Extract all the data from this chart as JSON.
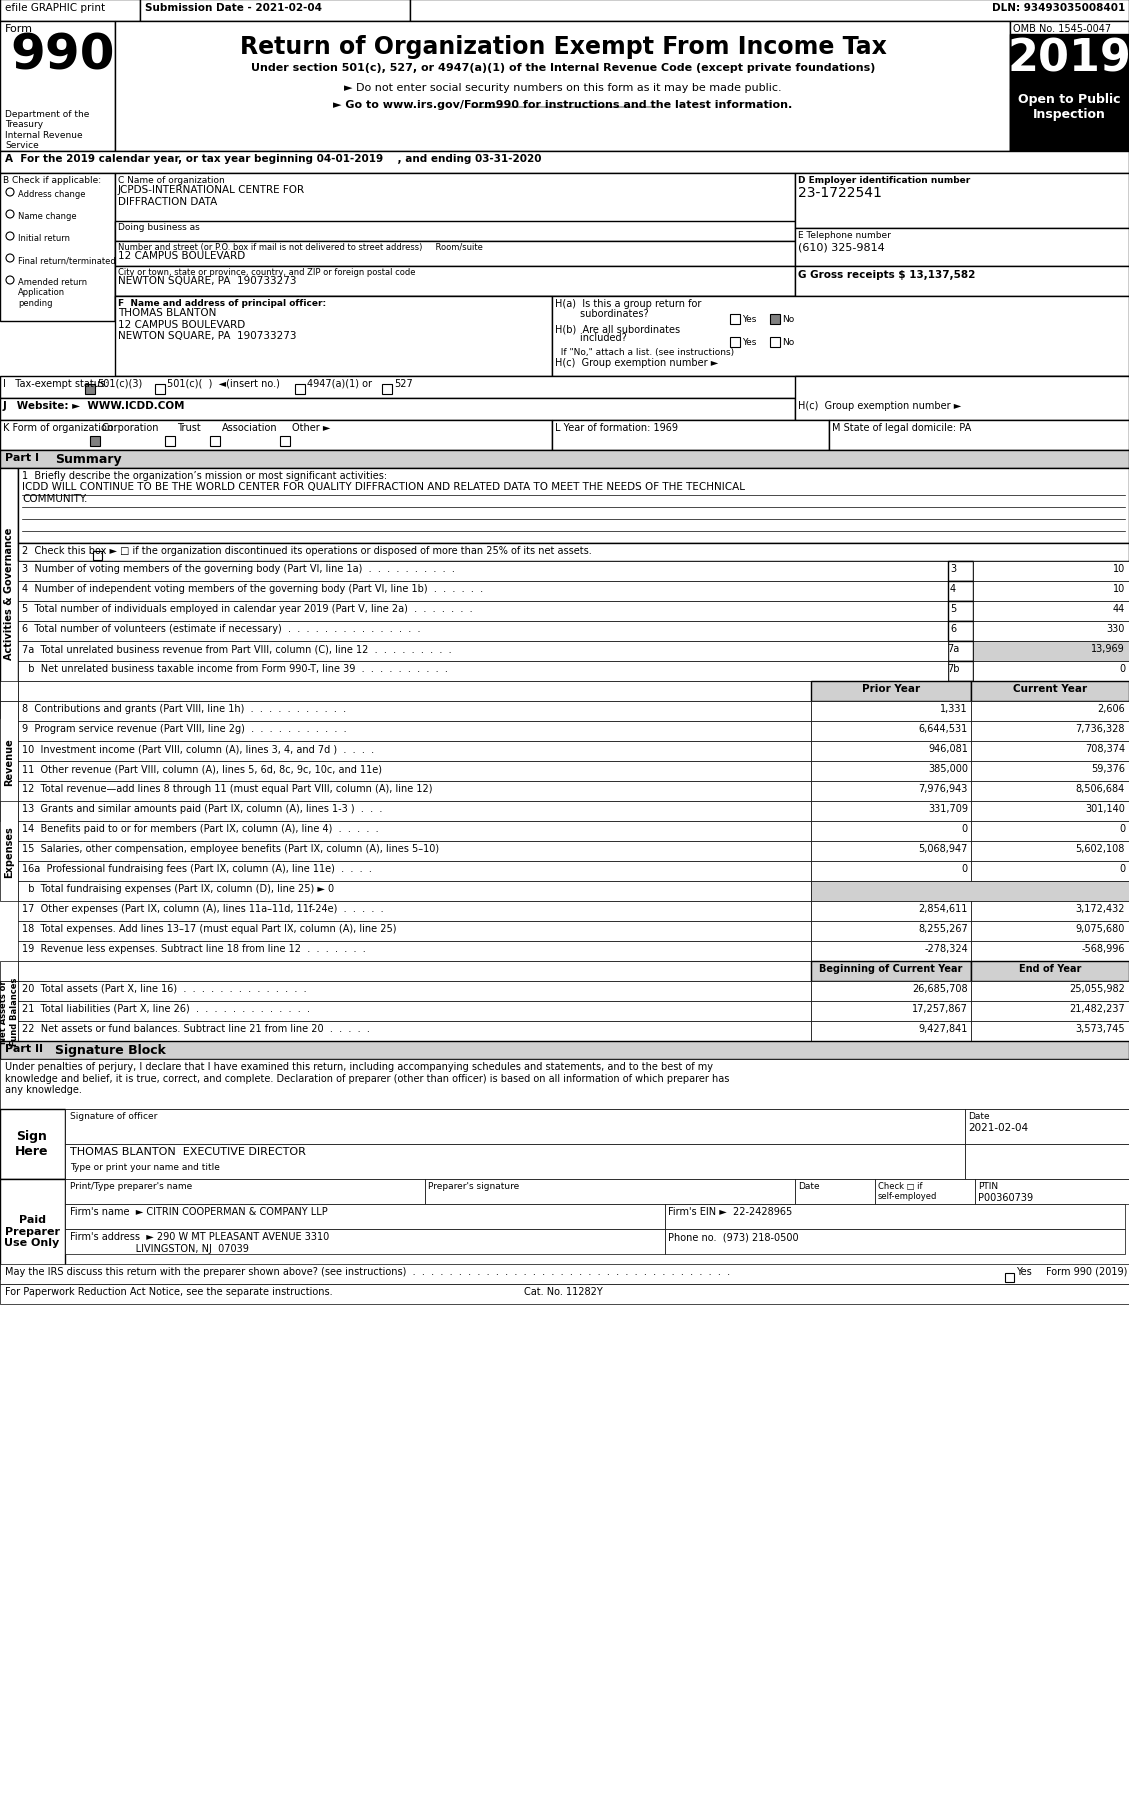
{
  "title_bar": "efile GRAPHIC print    Submission Date - 2021-02-04                                                                    DLN: 93493035008401",
  "form_number": "990",
  "form_title": "Return of Organization Exempt From Income Tax",
  "subtitle1": "Under section 501(c), 527, or 4947(a)(1) of the Internal Revenue Code (except private foundations)",
  "subtitle2": "► Do not enter social security numbers on this form as it may be made public.",
  "subtitle3": "► Go to www.irs.gov/Form990 for instructions and the latest information.",
  "dept_label": "Department of the\nTreasury\nInternal Revenue\nService",
  "omb": "OMB No. 1545-0047",
  "year": "2019",
  "open_public": "Open to Public\nInspection",
  "line_A": "A  For the 2019 calendar year, or tax year beginning 04-01-2019    , and ending 03-31-2020",
  "org_name_label": "C Name of organization",
  "org_name": "JCPDS-INTERNATIONAL CENTRE FOR\nDIFFRACTION DATA",
  "doing_business": "Doing business as",
  "street_label": "Number and street (or P.O. box if mail is not delivered to street address)     Room/suite",
  "street": "12 CAMPUS BOULEVARD",
  "city_label": "City or town, state or province, country, and ZIP or foreign postal code",
  "city": "NEWTON SQUARE, PA  190733273",
  "ein_label": "D Employer identification number",
  "ein": "23-1722541",
  "phone_label": "E Telephone number",
  "phone": "(610) 325-9814",
  "gross_receipts": "G Gross receipts $ 13,137,582",
  "principal_officer_label": "F  Name and address of principal officer:",
  "principal_officer": "THOMAS BLANTON\n12 CAMPUS BOULEVARD\nNEWTON SQUARE, PA  190733273",
  "ha_label": "H(a)  Is this a group return for\n         subordinates?",
  "ha_answer": "Yes ✓No",
  "hb_label": "H(b)  Are all subordinates\n         included?",
  "hb_answer": "Yes □No",
  "if_no": "If \"No,\" attach a list. (see instructions)",
  "hc_label": "H(c)  Group exemption number ►",
  "tax_exempt": "I   Tax-exempt status:  ✓ 501(c)(3)   □ 501(c)(  )  ◄(insert no.)   □ 4947(a)(1) or  □ 527",
  "website_label": "J   Website: ►  WWW.ICDD.COM",
  "form_org": "K Form of organization:  ✓ Corporation   □ Trust  □ Association  □ Other ►",
  "year_formation": "L Year of formation: 1969",
  "state_legal": "M State of legal domicile: PA",
  "part1_label": "Part I     Summary",
  "mission_label": "1  Briefly describe the organization’s mission or most significant activities:",
  "mission_text": "ICDD WILL CONTINUE TO BE THE WORLD CENTER FOR QUALITY DIFFRACTION AND RELATED DATA TO MEET THE NEEDS OF THE TECHNICAL\nCOMMUNITY.",
  "check_box2": "2  Check this box ► □ if the organization discontinued its operations or disposed of more than 25% of its net assets.",
  "line3": "3  Number of voting members of the governing body (Part VI, line 1a)  .  .  .  .  .  .  .  .  .  .",
  "line3_num": "3",
  "line3_val": "10",
  "line4": "4  Number of independent voting members of the governing body (Part VI, line 1b)  .  .  .  .  .  .",
  "line4_num": "4",
  "line4_val": "10",
  "line5": "5  Total number of individuals employed in calendar year 2019 (Part V, line 2a)  .  .  .  .  .  .  .",
  "line5_num": "5",
  "line5_val": "44",
  "line6": "6  Total number of volunteers (estimate if necessary)  .  .  .  .  .  .  .  .  .  .  .  .  .  .  .",
  "line6_num": "6",
  "line6_val": "330",
  "line7a": "7a  Total unrelated business revenue from Part VIII, column (C), line 12  .  .  .  .  .  .  .  .  .",
  "line7a_num": "7a",
  "line7a_val": "13,969",
  "line7b": "  b  Net unrelated business taxable income from Form 990-T, line 39  .  .  .  .  .  .  .  .  .  .",
  "line7b_num": "7b",
  "line7b_val": "0",
  "prior_year": "Prior Year",
  "current_year": "Current Year",
  "line8": "8  Contributions and grants (Part VIII, line 1h)  .  .  .  .  .  .  .  .  .  .  .",
  "line8_prior": "1,331",
  "line8_curr": "2,606",
  "line9": "9  Program service revenue (Part VIII, line 2g)  .  .  .  .  .  .  .  .  .  .  .",
  "line9_prior": "6,644,531",
  "line9_curr": "7,736,328",
  "line10": "10  Investment income (Part VIII, column (A), lines 3, 4, and 7d )  .  .  .  .",
  "line10_prior": "946,081",
  "line10_curr": "708,374",
  "line11": "11  Other revenue (Part VIII, column (A), lines 5, 6d, 8c, 9c, 10c, and 11e)",
  "line11_prior": "385,000",
  "line11_curr": "59,376",
  "line12": "12  Total revenue—add lines 8 through 11 (must equal Part VIII, column (A), line 12)",
  "line12_prior": "7,976,943",
  "line12_curr": "8,506,684",
  "line13": "13  Grants and similar amounts paid (Part IX, column (A), lines 1-3 )  .  .  .",
  "line13_prior": "331,709",
  "line13_curr": "301,140",
  "line14": "14  Benefits paid to or for members (Part IX, column (A), line 4)  .  .  .  .  .",
  "line14_prior": "0",
  "line14_curr": "0",
  "line15": "15  Salaries, other compensation, employee benefits (Part IX, column (A), lines 5–10)",
  "line15_prior": "5,068,947",
  "line15_curr": "5,602,108",
  "line16a": "16a  Professional fundraising fees (Part IX, column (A), line 11e)  .  .  .  .",
  "line16a_prior": "0",
  "line16a_curr": "0",
  "line16b": "  b  Total fundraising expenses (Part IX, column (D), line 25) ► 0",
  "line17": "17  Other expenses (Part IX, column (A), lines 11a–11d, 11f-24e)  .  .  .  .  .",
  "line17_prior": "2,854,611",
  "line17_curr": "3,172,432",
  "line18": "18  Total expenses. Add lines 13–17 (must equal Part IX, column (A), line 25)",
  "line18_prior": "8,255,267",
  "line18_curr": "9,075,680",
  "line19": "19  Revenue less expenses. Subtract line 18 from line 12  .  .  .  .  .  .  .",
  "line19_prior": "-278,324",
  "line19_curr": "-568,996",
  "beg_curr_year": "Beginning of Current Year",
  "end_of_year": "End of Year",
  "line20": "20  Total assets (Part X, line 16)  .  .  .  .  .  .  .  .  .  .  .  .  .  .",
  "line20_beg": "26,685,708",
  "line20_end": "25,055,982",
  "line21": "21  Total liabilities (Part X, line 26)  .  .  .  .  .  .  .  .  .  .  .  .  .",
  "line21_beg": "17,257,867",
  "line21_end": "21,482,237",
  "line22": "22  Net assets or fund balances. Subtract line 21 from line 20  .  .  .  .  .",
  "line22_beg": "9,427,841",
  "line22_end": "3,573,745",
  "part2_label": "Part II     Signature Block",
  "sig_text": "Under penalties of perjury, I declare that I have examined this return, including accompanying schedules and statements, and to the best of my\nknowledge and belief, it is true, correct, and complete. Declaration of preparer (other than officer) is based on all information of which preparer has\nany knowledge.",
  "sig_officer_label": "Signature of officer",
  "sig_date": "2021-02-04",
  "sig_date_label": "Date",
  "sig_name_title": "THOMAS BLANTON  EXECUTIVE DIRECTOR",
  "type_name_label": "Type or print your name and title",
  "preparer_name_label": "Print/Type preparer's name",
  "preparer_sig_label": "Preparer's signature",
  "date_label2": "Date",
  "check_label": "Check □ if\nself-employed",
  "ptin_label": "PTIN",
  "ptin": "P00360739",
  "paid_preparer": "Paid\nPreparer\nUse Only",
  "firms_name_label": "Firm's name",
  "firms_name": "► CITRIN COOPERMAN & COMPANY LLP",
  "firms_ein_label": "Firm's EIN ►",
  "firms_ein": "22-2428965",
  "firms_address_label": "Firm's address",
  "firms_address": "► 290 W MT PLEASANT AVENUE 3310",
  "firms_city": "LIVINGSTON, NJ  07039",
  "phone_no_label": "Phone no.",
  "phone_no": "(973) 218-0500",
  "discuss_label": "May the IRS discuss this return with the preparer shown above? (see instructions)  .  .  .  .  .  .  .  .  .  .  .  .  .  .  .  .  .  .  .  .  .  .  .  .  .  .  .  .  .  .  .  .  .  .  .",
  "discuss_answer": "Yes   Form 990 (2019)",
  "footer_label": "For Paperwork Reduction Act Notice, see the separate instructions.",
  "cat_no": "Cat. No. 11282Y",
  "side_labels_governance": "Activities & Governance",
  "side_labels_revenue": "Revenue",
  "side_labels_expenses": "Expenses",
  "side_labels_netassets": "Net Assets or\nFund Balances",
  "sign_here": "Sign\nHere",
  "bg_color": "#ffffff",
  "border_color": "#000000",
  "header_bg": "#000000",
  "header_text": "#ffffff",
  "gray_bg": "#d0d0d0"
}
